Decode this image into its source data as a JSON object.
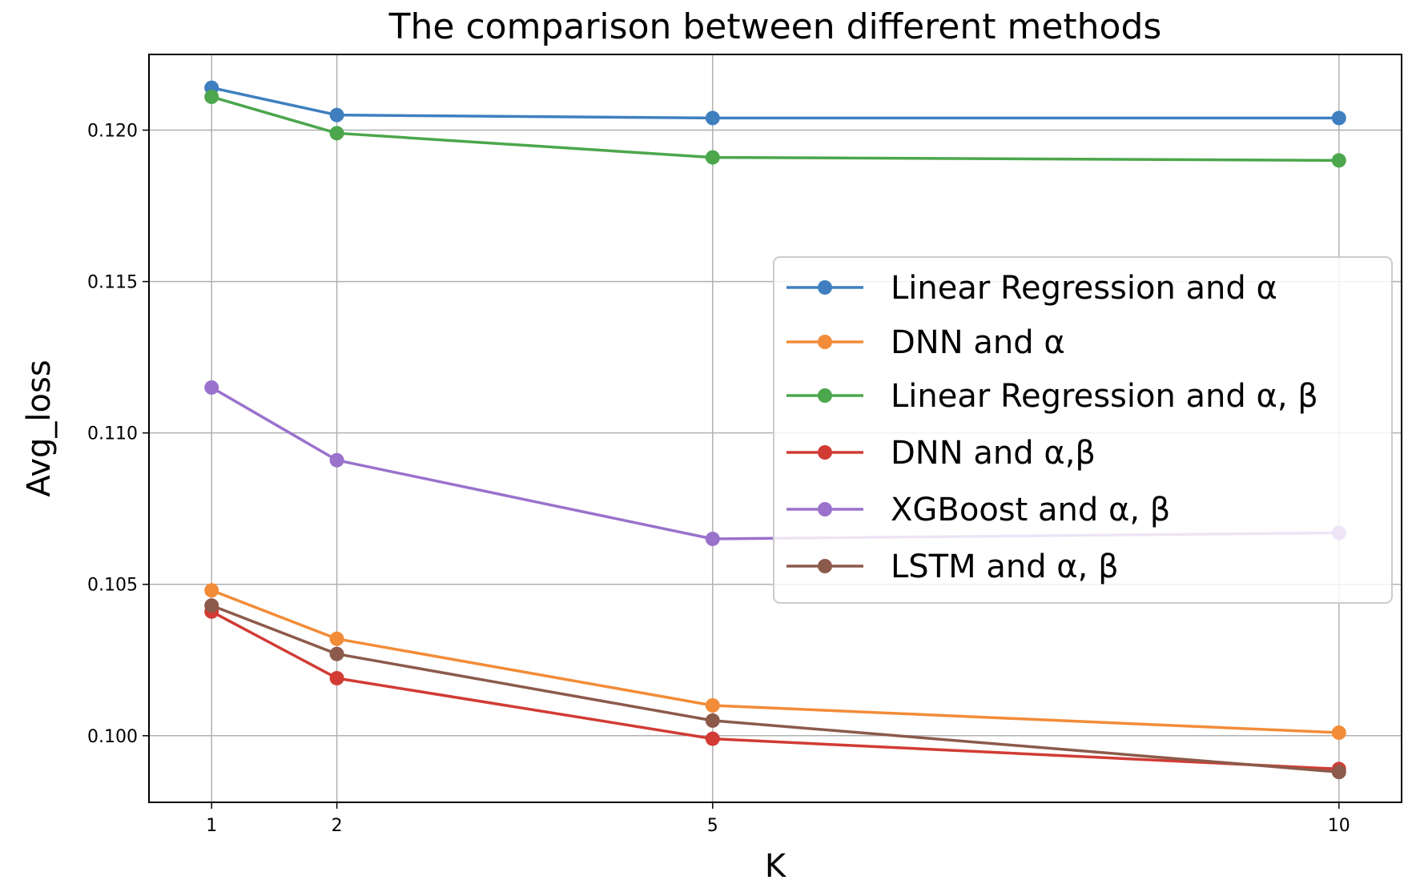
{
  "chart_data": {
    "type": "line",
    "title": "The comparison between different methods",
    "xlabel": "K",
    "ylabel": "Avg_loss",
    "x": [
      1,
      2,
      5,
      10
    ],
    "xticks": [
      "1",
      "2",
      "5",
      "10"
    ],
    "yticks": [
      "0.100",
      "0.105",
      "0.110",
      "0.115",
      "0.120"
    ],
    "xlim": [
      0.5,
      10.5
    ],
    "ylim": [
      0.0978,
      0.1225
    ],
    "grid": true,
    "legend_position": "center-right",
    "series": [
      {
        "name": "Linear Regression and α",
        "color": "#3f7fbf",
        "values": [
          0.1214,
          0.1205,
          0.1204,
          0.1204
        ]
      },
      {
        "name": "DNN and α",
        "color": "#f28c38",
        "values": [
          0.1048,
          0.1032,
          0.101,
          0.1001
        ]
      },
      {
        "name": "Linear Regression and α, β",
        "color": "#4ca64c",
        "values": [
          0.1211,
          0.1199,
          0.1191,
          0.119
        ]
      },
      {
        "name": "DNN and α,β",
        "color": "#d13b34",
        "values": [
          0.1041,
          0.1019,
          0.0999,
          0.0989
        ]
      },
      {
        "name": "XGBoost and α, β",
        "color": "#9a72cc",
        "values": [
          0.1115,
          0.1091,
          0.1065,
          0.1067
        ]
      },
      {
        "name": "LSTM and α, β",
        "color": "#8c5a4a",
        "values": [
          0.1043,
          0.1027,
          0.1005,
          0.0988
        ]
      }
    ]
  }
}
